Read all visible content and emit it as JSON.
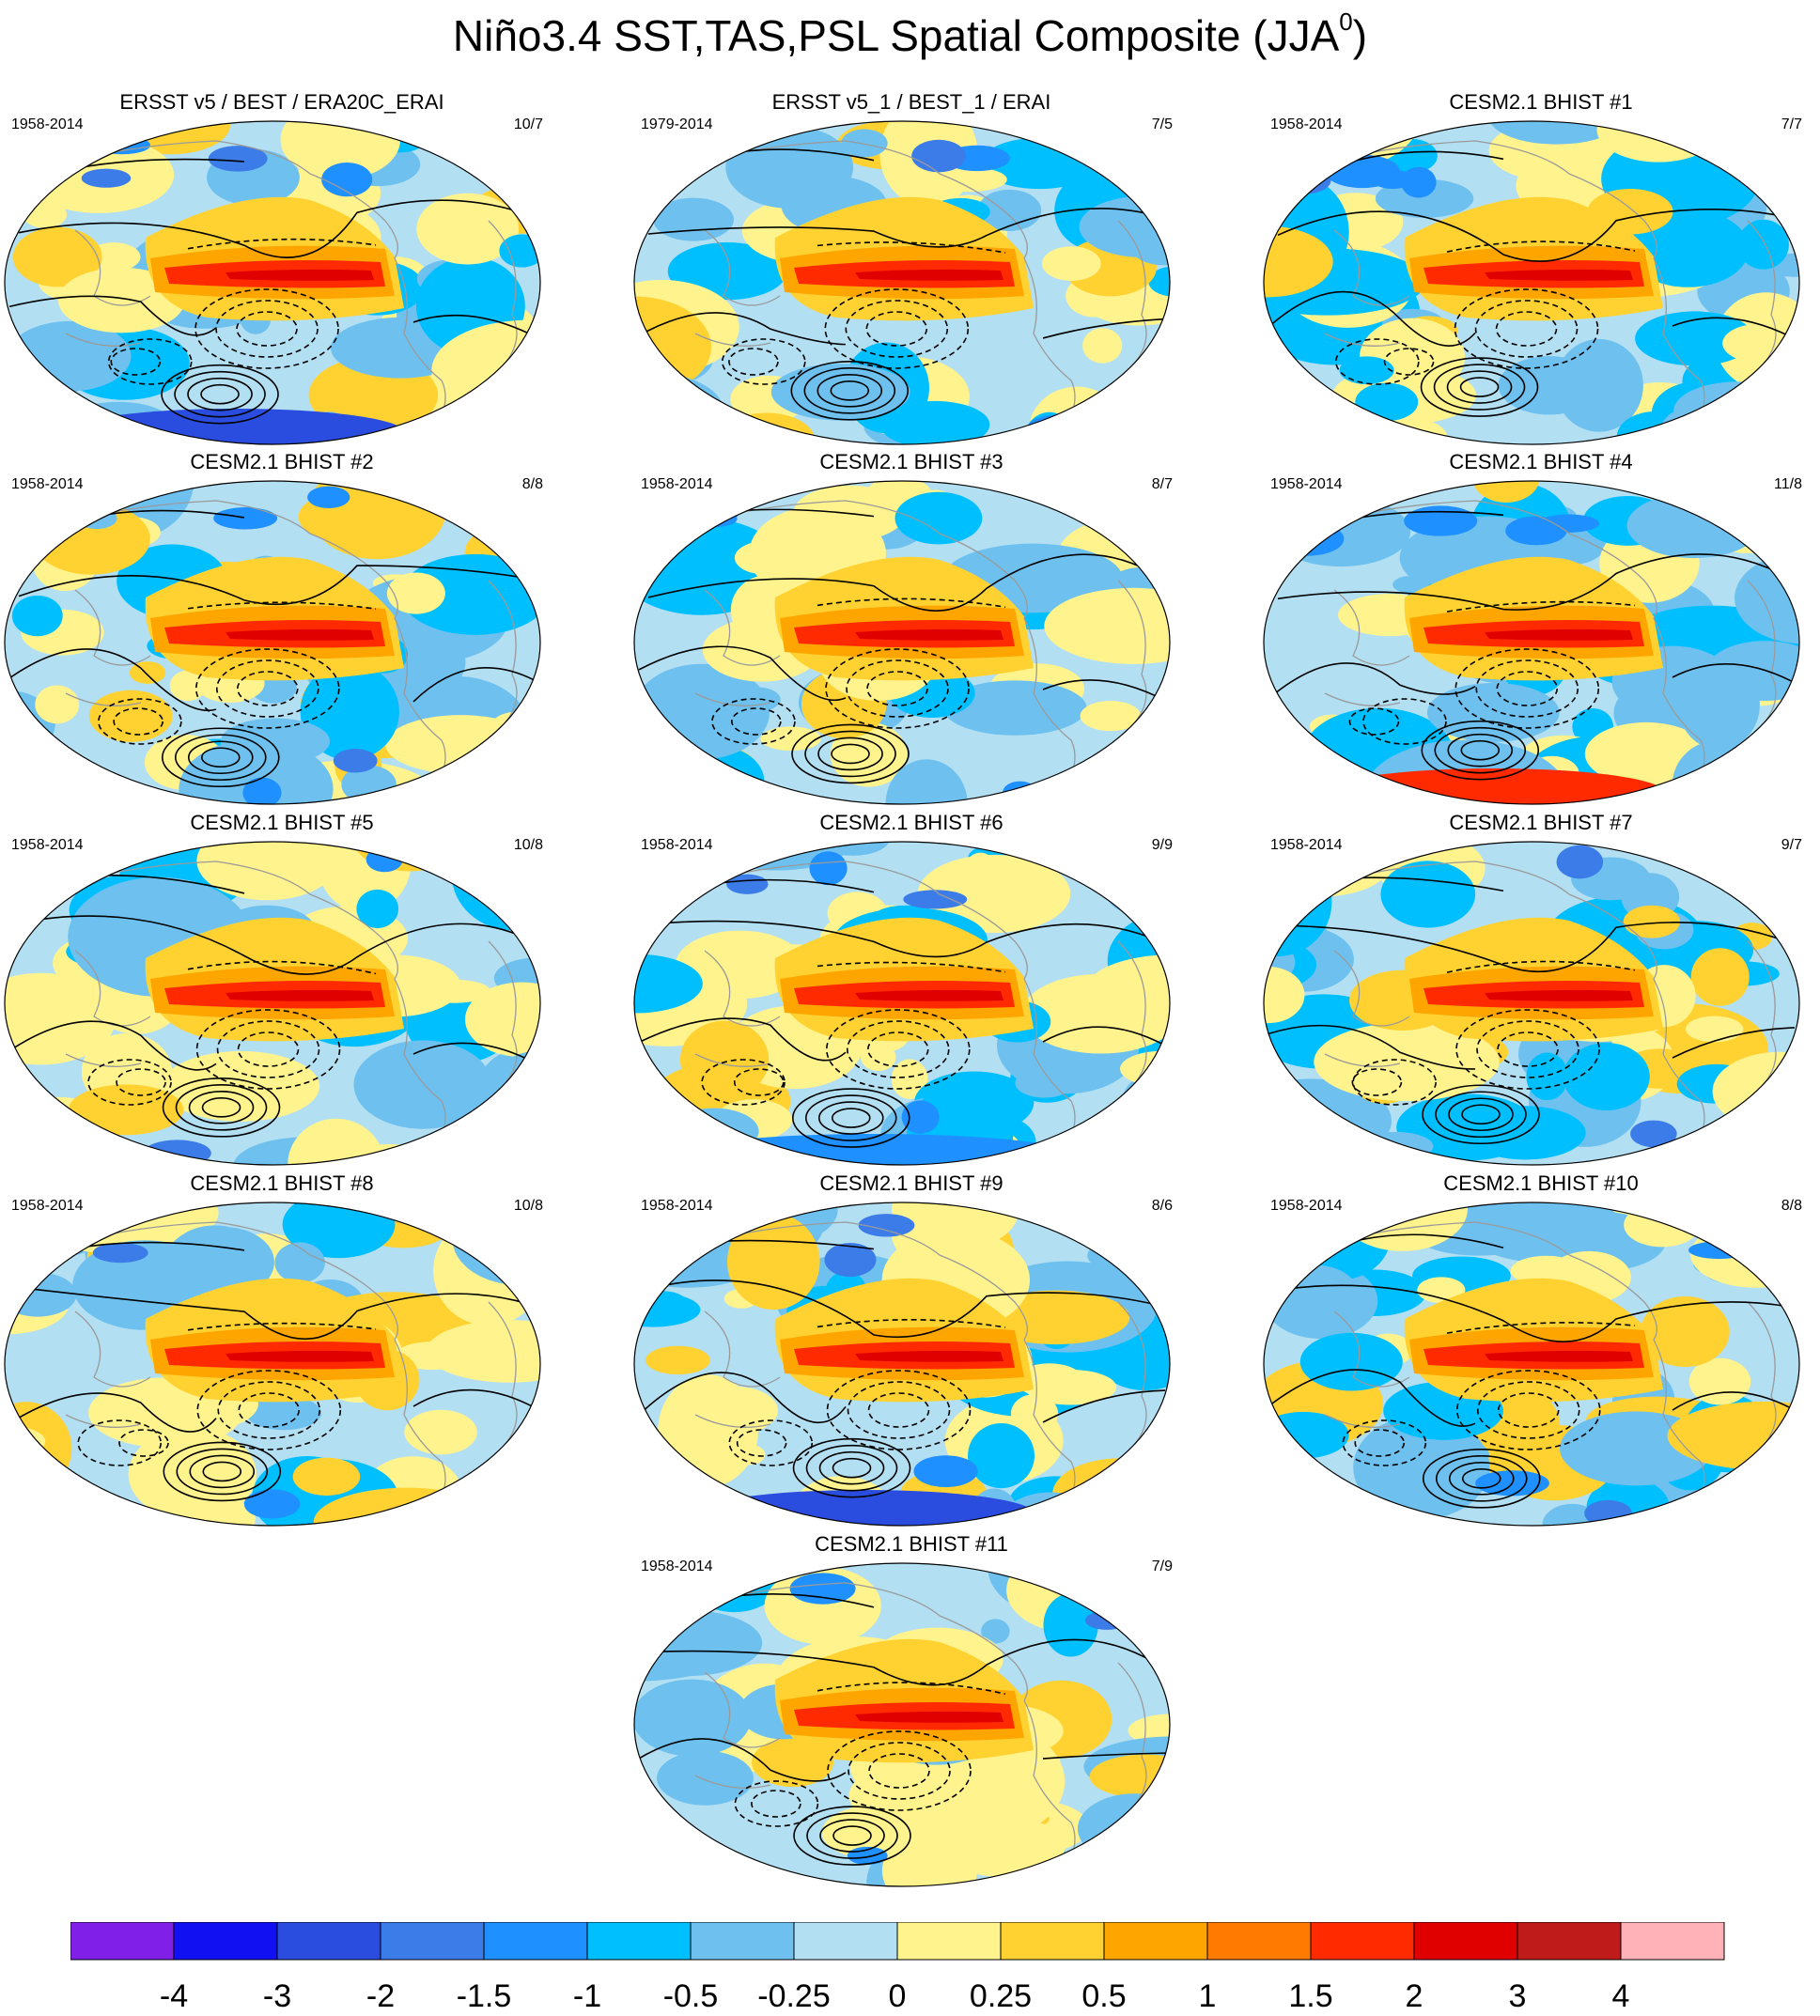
{
  "title": {
    "main": "Niño3.4 SST,TAS,PSL Spatial Composite (JJA",
    "superscript": "0",
    "close": ")"
  },
  "panels": [
    {
      "title": "ERSST v5 / BEST / ERA20C_ERAI",
      "period": "1958-2014",
      "count": "10/7"
    },
    {
      "title": "ERSST v5_1 / BEST_1 / ERAI",
      "period": "1979-2014",
      "count": "7/5"
    },
    {
      "title": "CESM2.1 BHIST #1",
      "period": "1958-2014",
      "count": "7/7"
    },
    {
      "title": "CESM2.1 BHIST #2",
      "period": "1958-2014",
      "count": "8/8"
    },
    {
      "title": "CESM2.1 BHIST #3",
      "period": "1958-2014",
      "count": "8/7"
    },
    {
      "title": "CESM2.1 BHIST #4",
      "period": "1958-2014",
      "count": "11/8"
    },
    {
      "title": "CESM2.1 BHIST #5",
      "period": "1958-2014",
      "count": "10/8"
    },
    {
      "title": "CESM2.1 BHIST #6",
      "period": "1958-2014",
      "count": "9/9"
    },
    {
      "title": "CESM2.1 BHIST #7",
      "period": "1958-2014",
      "count": "9/7"
    },
    {
      "title": "CESM2.1 BHIST #8",
      "period": "1958-2014",
      "count": "10/8"
    },
    {
      "title": "CESM2.1 BHIST #9",
      "period": "1958-2014",
      "count": "8/6"
    },
    {
      "title": "CESM2.1 BHIST #10",
      "period": "1958-2014",
      "count": "8/8"
    },
    {
      "title": "CESM2.1 BHIST #11",
      "period": "1958-2014",
      "count": "7/9"
    }
  ],
  "chart_data": {
    "type": "heatmap",
    "title": "Niño3.4 SST,TAS,PSL Spatial Composite (JJA0)",
    "colorbar": {
      "colors": [
        "#7f1fe8",
        "#1010f2",
        "#2a4de0",
        "#3c7ce8",
        "#1e90ff",
        "#00bfff",
        "#6ec1ef",
        "#b3dff2",
        "#fff38e",
        "#ffd232",
        "#ffa500",
        "#ff7a00",
        "#ff2a00",
        "#e00000",
        "#c01b1b",
        "#ffb3b8"
      ],
      "ticks": [
        "-4",
        "-3",
        "-2",
        "-1.5",
        "-1",
        "-0.5",
        "-0.25",
        "0",
        "0.25",
        "0.5",
        "1",
        "1.5",
        "2",
        "3",
        "4"
      ]
    }
  },
  "colors": {
    "contour": "#000000",
    "coastline": "#9a9a9a"
  }
}
